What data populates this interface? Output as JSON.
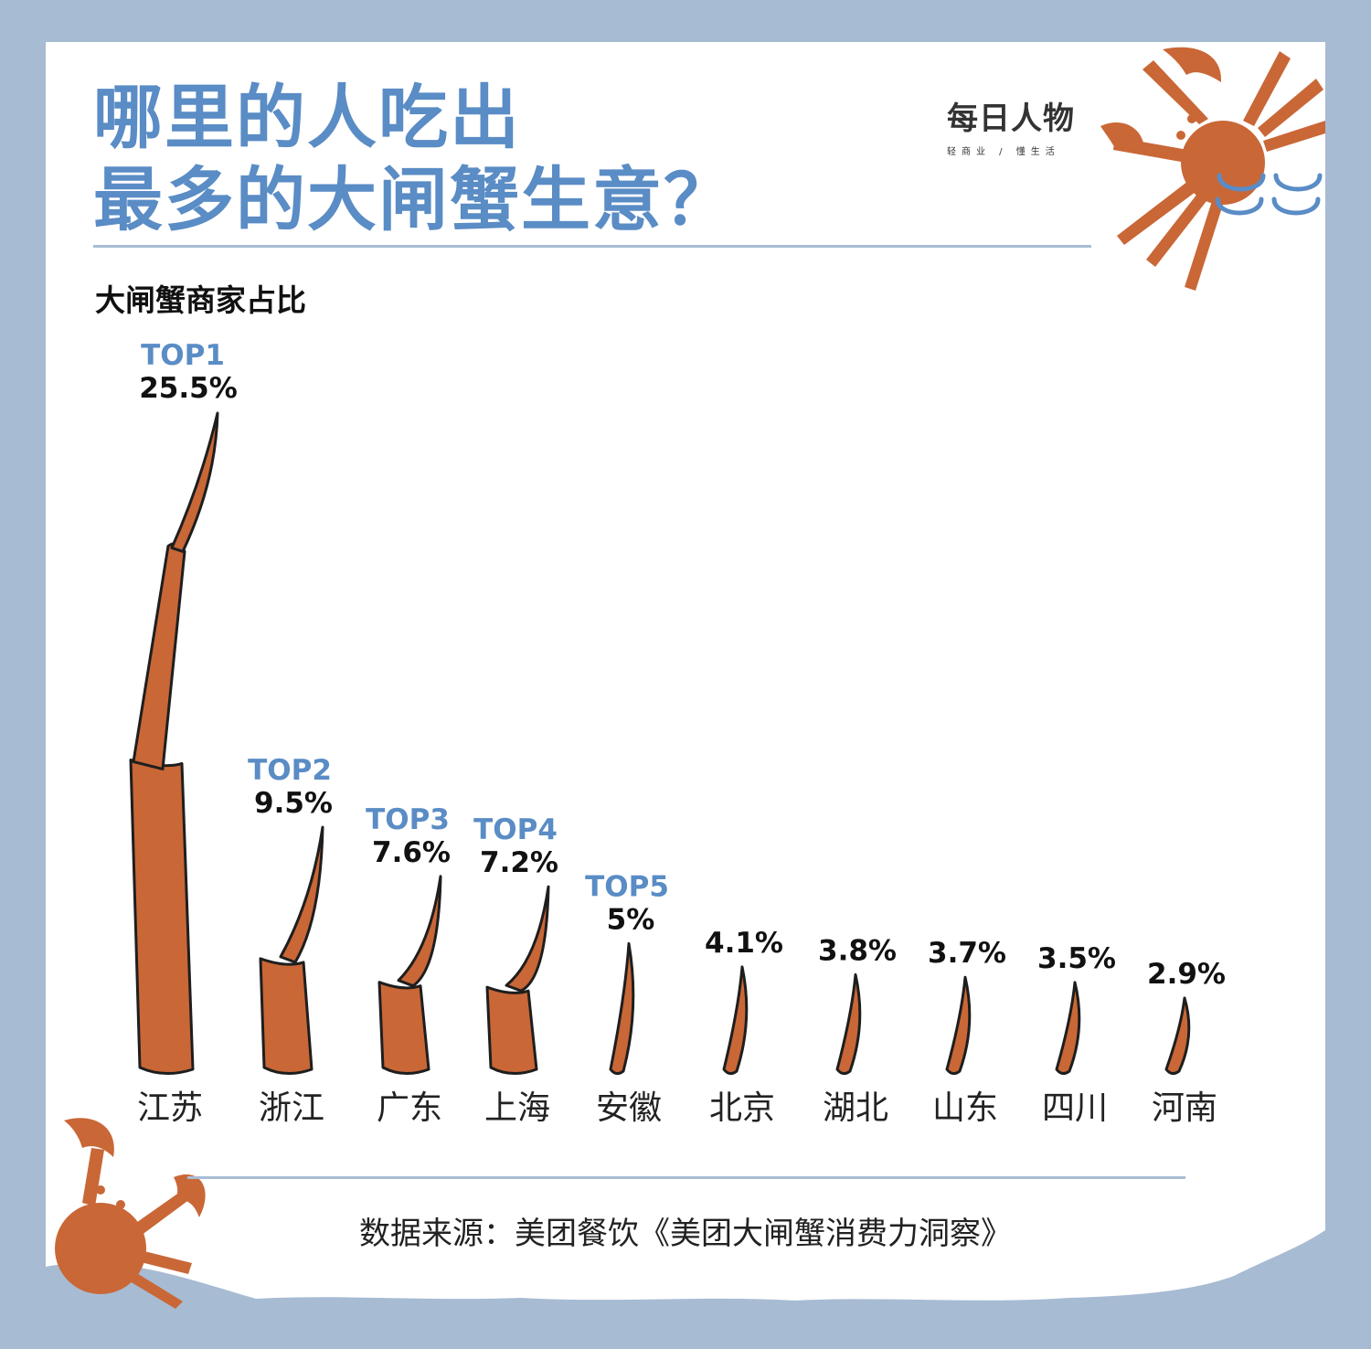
{
  "title": {
    "line1": "哪里的人吃出",
    "line2": "最多的大闸蟹生意？"
  },
  "brand": {
    "name": "每日人物",
    "tagline": "轻商业 / 懂生活"
  },
  "source_text": "数据来源：美团餐饮《美团大闸蟹消费力洞察》",
  "colors": {
    "background": "#a7bbd3",
    "title": "#5a8cc5",
    "rank_label": "#5a8cc5",
    "claw": "#c96737",
    "outline": "#1e1e1e"
  },
  "icons": [
    "crab-icon",
    "wave-icon"
  ],
  "chart_data": {
    "type": "bar",
    "title": "大闸蟹商家占比",
    "categories": [
      "江苏",
      "浙江",
      "广东",
      "上海",
      "安徽",
      "北京",
      "湖北",
      "山东",
      "四川",
      "河南"
    ],
    "values": [
      25.5,
      9.5,
      7.6,
      7.2,
      5,
      4.1,
      3.8,
      3.7,
      3.5,
      2.9
    ],
    "value_labels": [
      "25.5%",
      "9.5%",
      "7.6%",
      "7.2%",
      "5%",
      "4.1%",
      "3.8%",
      "3.7%",
      "3.5%",
      "2.9%"
    ],
    "rank_labels": [
      "TOP1",
      "TOP2",
      "TOP3",
      "TOP4",
      "TOP5",
      "",
      "",
      "",
      "",
      ""
    ],
    "unit": "%",
    "ylim": [
      0,
      25.5
    ],
    "grid": false,
    "legend": "none"
  }
}
